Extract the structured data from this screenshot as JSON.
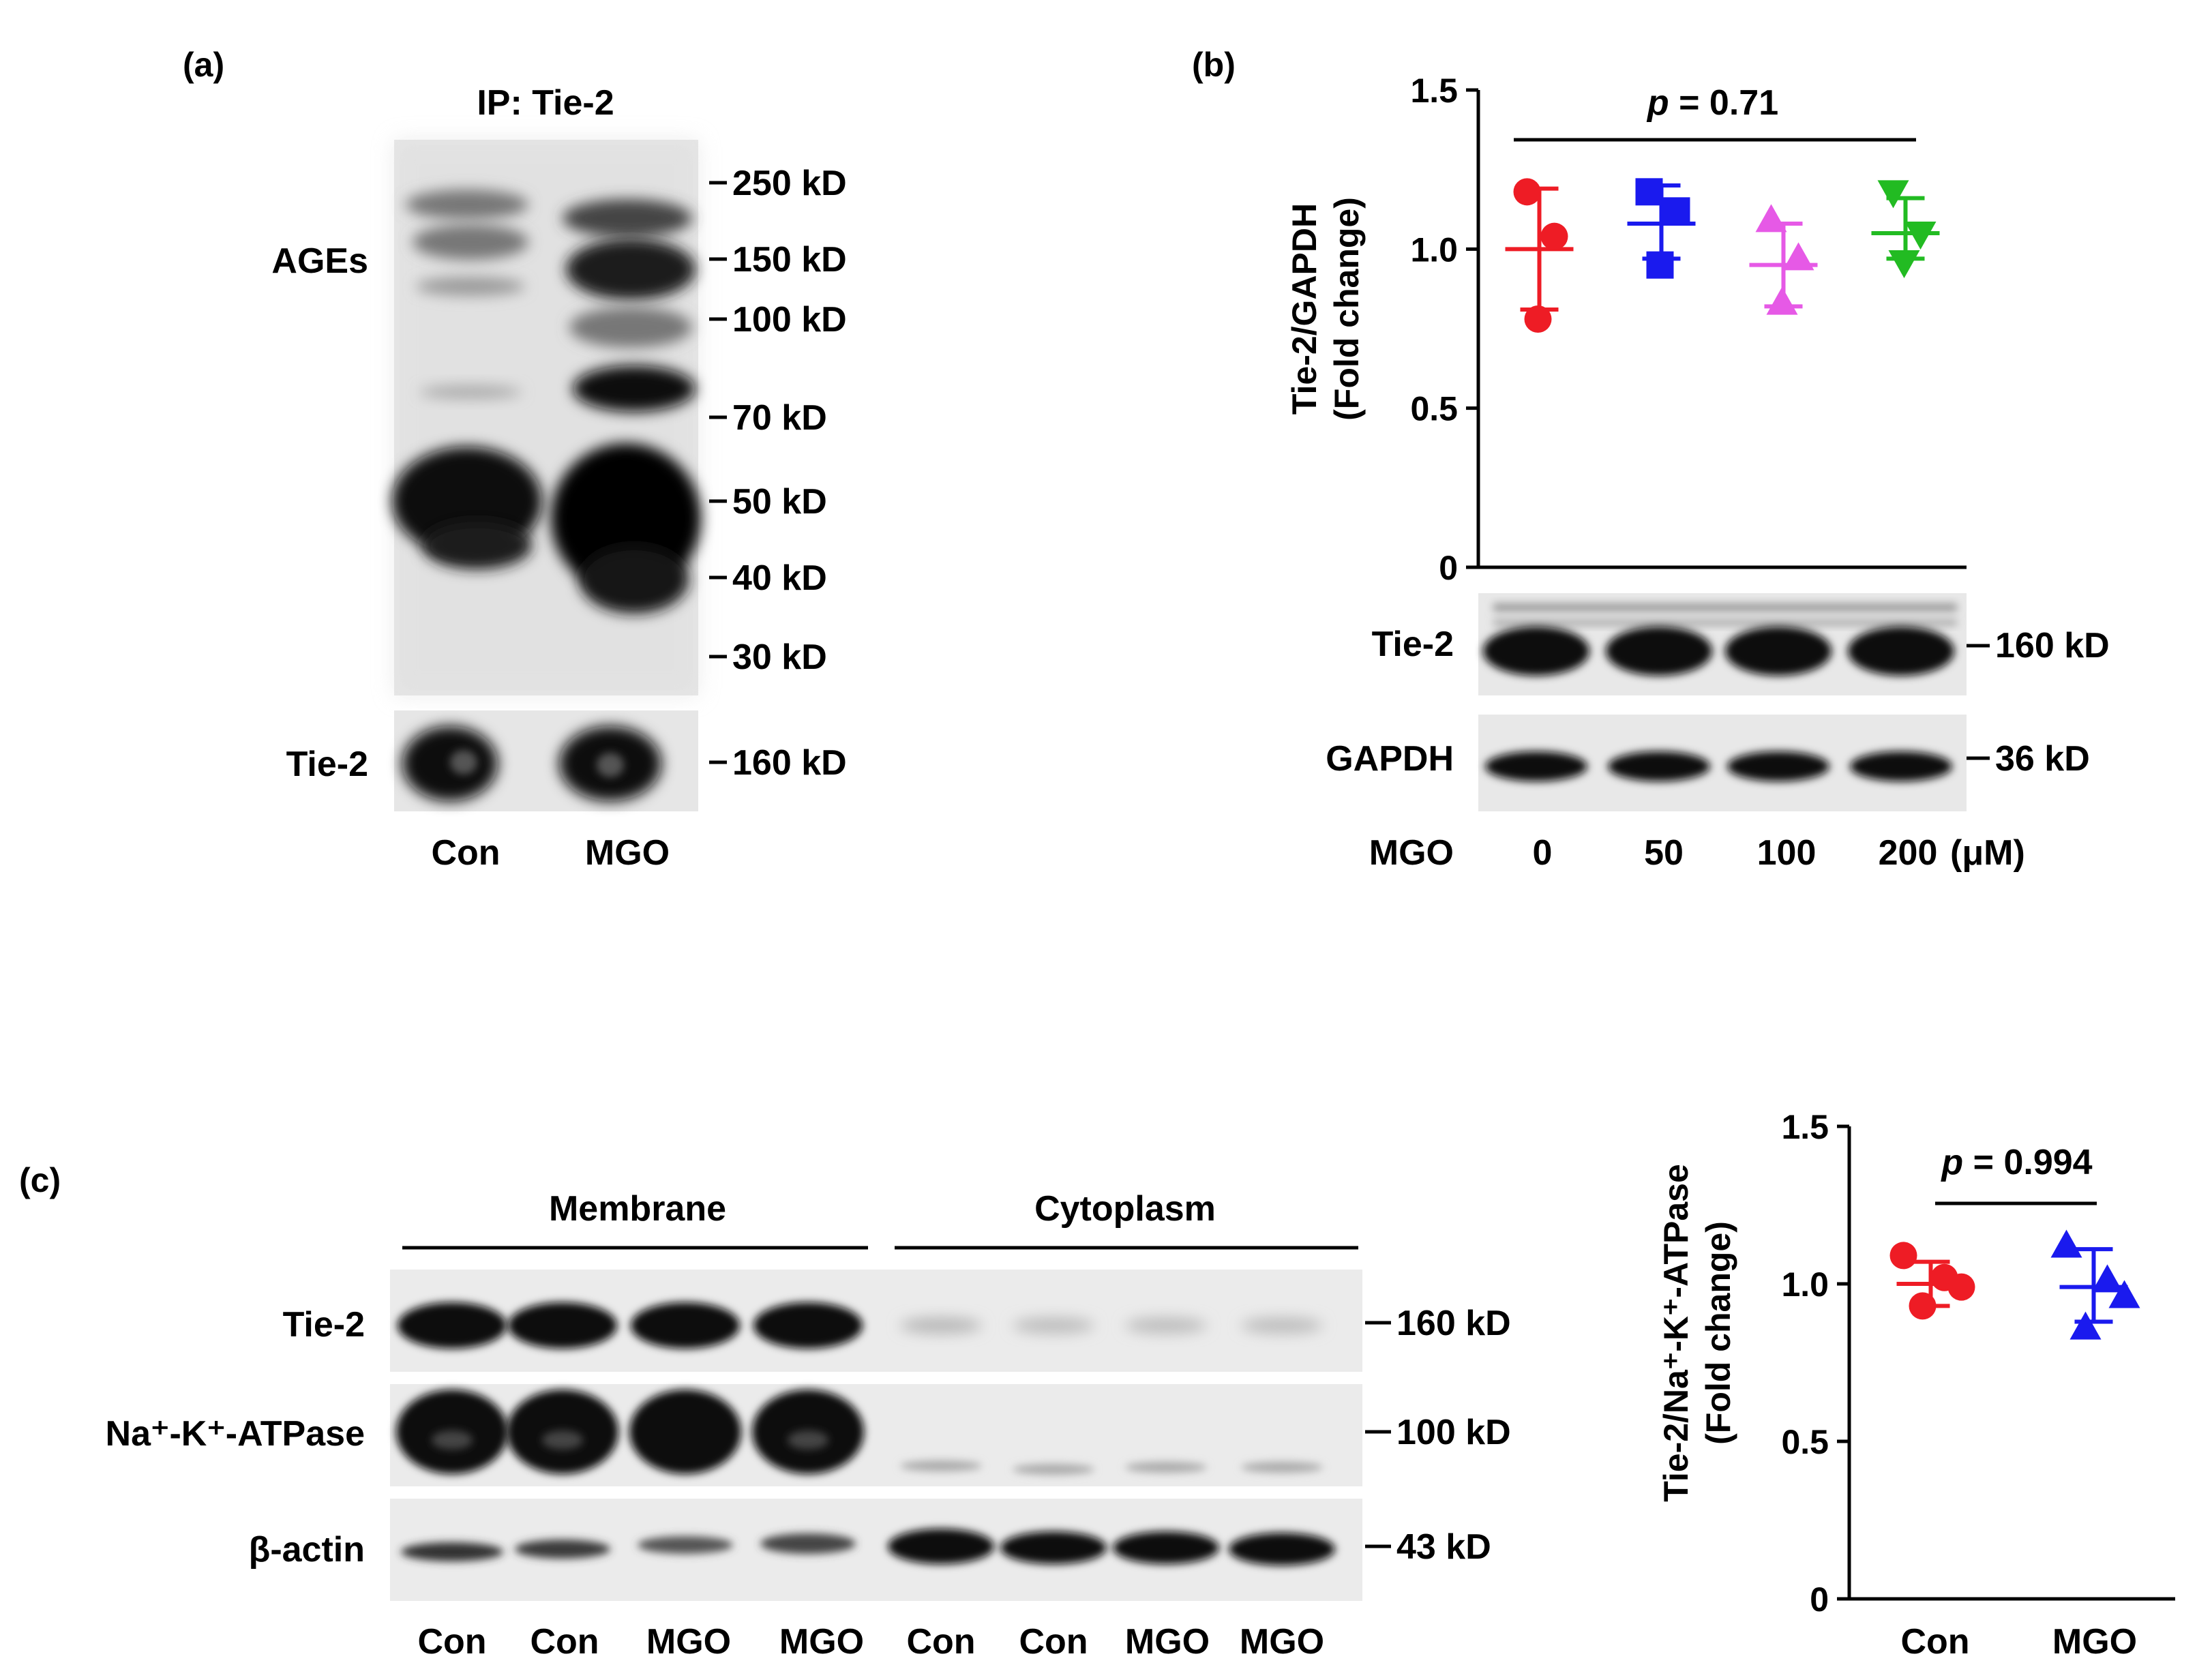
{
  "panel_a": {
    "label": "(a)",
    "ip_label": "IP: Tie-2",
    "row_ages": "AGEs",
    "row_tie2": "Tie-2",
    "markers": [
      "250 kD",
      "150 kD",
      "100 kD",
      "70 kD",
      "50 kD",
      "40 kD",
      "30 kD"
    ],
    "tie2_marker": "160 kD",
    "lanes": [
      "Con",
      "MGO"
    ]
  },
  "panel_b": {
    "label": "(b)",
    "pvalue_p": "p",
    "pvalue_rest": " = 0.71",
    "ylabel_line1": "Tie-2/GAPDH",
    "ylabel_line2": "(Fold change)",
    "row_tie2": "Tie-2",
    "row_gapdh": "GAPDH",
    "marker_tie2": "160 kD",
    "marker_gapdh": "36 kD",
    "treatment_label": "MGO",
    "lanes": [
      "0",
      "50",
      "100",
      "200"
    ],
    "unit": "(μM)"
  },
  "panel_c": {
    "label": "(c)",
    "group_membrane": "Membrane",
    "group_cytoplasm": "Cytoplasm",
    "row_tie2": "Tie-2",
    "row_atpase": "Na⁺-K⁺-ATPase",
    "row_actin": "β-actin",
    "markers": [
      "160 kD",
      "100 kD",
      "43 kD"
    ],
    "lanes": [
      "Con",
      "Con",
      "MGO",
      "MGO",
      "Con",
      "Con",
      "MGO",
      "MGO"
    ],
    "pvalue_p": "p",
    "pvalue_rest": " = 0.994",
    "ylabel_line1": "Tie-2/Na⁺-K⁺-ATPase",
    "ylabel_line2": "(Fold change)"
  },
  "chart_data": [
    {
      "type": "scatter",
      "panel": "b",
      "categories": [
        "0",
        "50",
        "100",
        "200"
      ],
      "ylim": [
        0,
        1.5
      ],
      "yticks": [
        "0",
        "0.5",
        "1.0",
        "1.5"
      ],
      "series": [
        {
          "color": "#ee1c25",
          "marker": "circle",
          "points": [
            1.18,
            1.04,
            0.78
          ],
          "mean": 1.0,
          "sd_low": 0.81,
          "sd_high": 1.19
        },
        {
          "color": "#1a1aee",
          "marker": "square",
          "points": [
            1.18,
            1.12,
            0.95
          ],
          "mean": 1.08,
          "sd_low": 0.97,
          "sd_high": 1.2
        },
        {
          "color": "#e659e6",
          "marker": "triangle-up",
          "points": [
            1.09,
            0.97,
            0.83
          ],
          "mean": 0.95,
          "sd_low": 0.82,
          "sd_high": 1.08
        },
        {
          "color": "#22bb22",
          "marker": "triangle-down",
          "points": [
            1.18,
            1.05,
            0.96
          ],
          "mean": 1.05,
          "sd_low": 0.97,
          "sd_high": 1.16
        }
      ]
    },
    {
      "type": "scatter",
      "panel": "c",
      "categories": [
        "Con",
        "MGO"
      ],
      "ylim": [
        0,
        1.5
      ],
      "yticks": [
        "0",
        "0.5",
        "1.0",
        "1.5"
      ],
      "series": [
        {
          "color": "#ee1c25",
          "marker": "circle",
          "points": [
            1.09,
            1.02,
            0.99,
            0.93
          ],
          "mean": 1.0,
          "sd_low": 0.93,
          "sd_high": 1.07
        },
        {
          "color": "#1a1aee",
          "marker": "triangle-up",
          "points": [
            1.12,
            1.01,
            0.96,
            0.86
          ],
          "mean": 0.99,
          "sd_low": 0.88,
          "sd_high": 1.11
        }
      ]
    }
  ]
}
